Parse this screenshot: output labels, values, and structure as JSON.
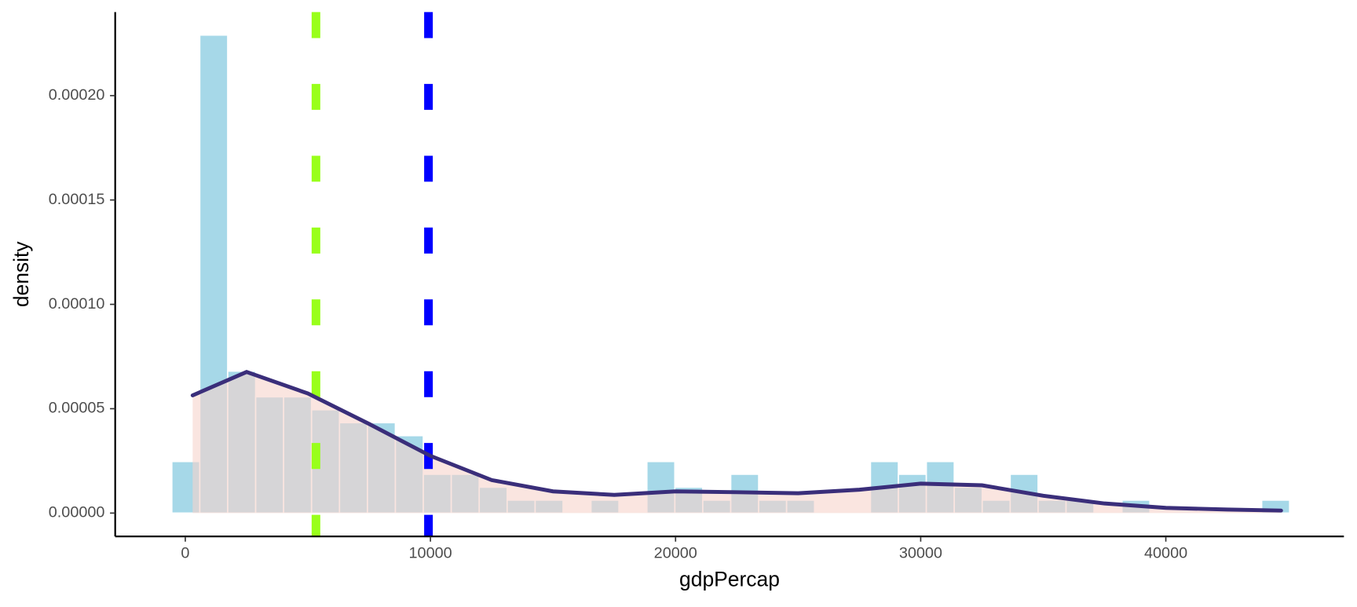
{
  "chart_data": {
    "type": "histogram",
    "xlabel": "gdpPercap",
    "ylabel": "density",
    "bins": [
      -550,
      590,
      1730,
      2870,
      4010,
      5150,
      6290,
      7430,
      8570,
      9710,
      10850,
      11990,
      13130,
      14270,
      15410,
      16550,
      17690,
      18830,
      19970,
      21110,
      22250,
      23390,
      24530,
      25670,
      26810,
      27950,
      29090,
      30230,
      31370,
      32510,
      33650,
      34790,
      35930,
      37070,
      38210,
      39350,
      40490,
      41630,
      42770,
      43910,
      45050
    ],
    "values": [
      2.47e-05,
      0.000229,
      6.8e-05,
      5.57e-05,
      5.57e-05,
      4.95e-05,
      4.33e-05,
      4.33e-05,
      3.71e-05,
      1.86e-05,
      1.86e-05,
      1.24e-05,
      6.2e-06,
      6.2e-06,
      0,
      6.2e-06,
      0,
      2.47e-05,
      1.24e-05,
      6.2e-06,
      1.86e-05,
      6.2e-06,
      6.2e-06,
      0,
      0,
      2.47e-05,
      1.86e-05,
      2.47e-05,
      1.24e-05,
      6.2e-06,
      1.86e-05,
      6.2e-06,
      6.2e-06,
      0,
      6.2e-06,
      0,
      0,
      0,
      0,
      6.2e-06
    ],
    "color": "#a6d8e8",
    "density": {
      "x": [
        300,
        2500,
        5000,
        7500,
        10000,
        12500,
        15000,
        17500,
        20000,
        22500,
        25000,
        27500,
        30000,
        32500,
        35000,
        37500,
        40000,
        42500,
        44700
      ],
      "y": [
        5.64e-05,
        6.76e-05,
        5.73e-05,
        4.27e-05,
        2.74e-05,
        1.58e-05,
        1.04e-05,
        8.7e-06,
        1.04e-05,
        1e-05,
        9.5e-06,
        1.12e-05,
        1.41e-05,
        1.33e-05,
        8.3e-06,
        4.6e-06,
        2.5e-06,
        1.7e-06,
        1.2e-06
      ],
      "color": "#3a2e7a",
      "fill": "#f6d3cc"
    },
    "vlines": [
      {
        "x": 5330,
        "color": "#99ff1a"
      },
      {
        "x": 9920,
        "color": "#0000ff"
      }
    ],
    "xlim": [
      -2860,
      47265
    ],
    "ylim": [
      -1.12e-05,
      0.00024
    ],
    "xticks": [
      0,
      10000,
      20000,
      30000,
      40000
    ],
    "yticks": [
      {
        "value": 0,
        "label": "0.00000"
      },
      {
        "value": 5e-05,
        "label": "0.00005"
      },
      {
        "value": 0.0001,
        "label": "0.00010"
      },
      {
        "value": 0.00015,
        "label": "0.00015"
      },
      {
        "value": 0.0002,
        "label": "0.00020"
      }
    ]
  }
}
